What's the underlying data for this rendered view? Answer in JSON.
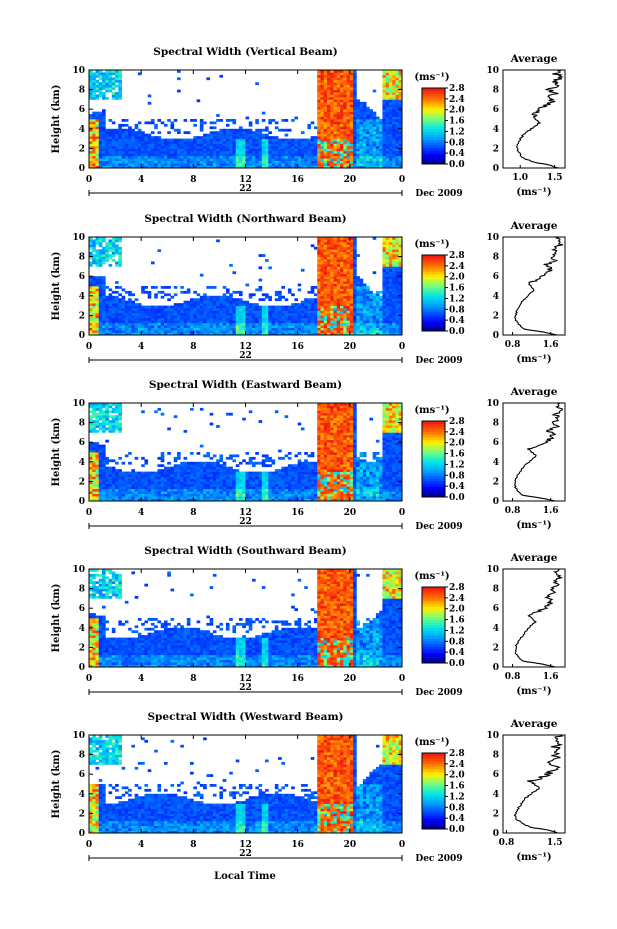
{
  "figure": {
    "xlabel_bottom": "Local Time",
    "date_label": "Dec 2009",
    "day_label": "22",
    "x_ticks": [
      "0",
      "4",
      "8",
      "12",
      "16",
      "20",
      "0"
    ],
    "y_ticks": [
      "0",
      "2",
      "4",
      "6",
      "8",
      "10"
    ],
    "ylabel": "Height (km)",
    "colorbar_unit": "(ms⁻¹)",
    "colorbar_ticks": [
      "0.0",
      "0.4",
      "0.8",
      "1.2",
      "1.6",
      "2.0",
      "2.4",
      "2.8"
    ],
    "avg_title": "Average",
    "avg_unit": "(ms⁻¹)"
  },
  "chart_data": [
    {
      "type": "heatmap",
      "title": "Spectral Width (Vertical Beam)",
      "xlabel": "Local Time",
      "ylabel": "Height (km)",
      "xlim": [
        0,
        24
      ],
      "ylim": [
        0,
        10
      ],
      "colorbar": {
        "label": "(ms⁻¹)",
        "range": [
          0,
          2.8
        ]
      }
    },
    {
      "type": "line",
      "title": "Average",
      "xlabel": "(ms⁻¹)",
      "ylabel": "Height (km)",
      "xlim": [
        0.75,
        1.65
      ],
      "ylim": [
        0,
        10
      ],
      "x_ticks": [
        "1.0",
        "1.5"
      ],
      "profile": [
        [
          1.55,
          0.0
        ],
        [
          1.42,
          0.3
        ],
        [
          1.2,
          0.6
        ],
        [
          1.05,
          1.0
        ],
        [
          1.0,
          1.4
        ],
        [
          0.97,
          1.8
        ],
        [
          0.96,
          2.2
        ],
        [
          0.98,
          2.6
        ],
        [
          1.0,
          3.0
        ],
        [
          1.05,
          3.4
        ],
        [
          1.12,
          3.8
        ],
        [
          1.2,
          4.2
        ],
        [
          1.28,
          4.6
        ],
        [
          1.22,
          5.0
        ],
        [
          1.18,
          5.3
        ],
        [
          1.25,
          5.6
        ],
        [
          1.3,
          6.0
        ],
        [
          1.38,
          6.4
        ],
        [
          1.45,
          6.8
        ],
        [
          1.38,
          7.2
        ],
        [
          1.5,
          7.6
        ],
        [
          1.42,
          8.0
        ],
        [
          1.55,
          8.4
        ],
        [
          1.48,
          8.8
        ],
        [
          1.58,
          9.2
        ],
        [
          1.52,
          9.6
        ],
        [
          1.6,
          10.0
        ]
      ]
    },
    {
      "type": "heatmap",
      "title": "Spectral Width (Northward Beam)",
      "xlabel": "Local Time",
      "ylabel": "Height (km)",
      "xlim": [
        0,
        24
      ],
      "ylim": [
        0,
        10
      ],
      "colorbar": {
        "label": "(ms⁻¹)",
        "range": [
          0,
          2.8
        ]
      }
    },
    {
      "type": "line",
      "title": "Average",
      "xlabel": "(ms⁻¹)",
      "ylabel": "Height (km)",
      "xlim": [
        0.6,
        1.9
      ],
      "ylim": [
        0,
        10
      ],
      "x_ticks": [
        "0.8",
        "1.6"
      ],
      "profile": [
        [
          1.75,
          0.0
        ],
        [
          1.45,
          0.3
        ],
        [
          1.05,
          0.6
        ],
        [
          0.95,
          1.0
        ],
        [
          0.88,
          1.4
        ],
        [
          0.86,
          1.8
        ],
        [
          0.88,
          2.2
        ],
        [
          0.9,
          2.6
        ],
        [
          0.95,
          3.0
        ],
        [
          1.0,
          3.4
        ],
        [
          1.08,
          3.8
        ],
        [
          1.15,
          4.2
        ],
        [
          1.25,
          4.6
        ],
        [
          1.18,
          5.0
        ],
        [
          1.12,
          5.3
        ],
        [
          1.3,
          5.6
        ],
        [
          1.45,
          6.0
        ],
        [
          1.55,
          6.4
        ],
        [
          1.6,
          6.8
        ],
        [
          1.5,
          7.2
        ],
        [
          1.7,
          7.6
        ],
        [
          1.62,
          8.0
        ],
        [
          1.75,
          8.4
        ],
        [
          1.68,
          8.8
        ],
        [
          1.8,
          9.2
        ],
        [
          1.72,
          9.6
        ],
        [
          1.78,
          10.0
        ]
      ]
    },
    {
      "type": "heatmap",
      "title": "Spectral Width (Eastward Beam)",
      "xlabel": "Local Time",
      "ylabel": "Height (km)",
      "xlim": [
        0,
        24
      ],
      "ylim": [
        0,
        10
      ],
      "colorbar": {
        "label": "(ms⁻¹)",
        "range": [
          0,
          2.8
        ]
      }
    },
    {
      "type": "line",
      "title": "Average",
      "xlabel": "(ms⁻¹)",
      "ylabel": "Height (km)",
      "xlim": [
        0.6,
        1.9
      ],
      "ylim": [
        0,
        10
      ],
      "x_ticks": [
        "0.8",
        "1.6"
      ],
      "profile": [
        [
          1.7,
          0.0
        ],
        [
          1.4,
          0.3
        ],
        [
          1.0,
          0.6
        ],
        [
          0.92,
          1.0
        ],
        [
          0.86,
          1.4
        ],
        [
          0.85,
          1.8
        ],
        [
          0.87,
          2.2
        ],
        [
          0.9,
          2.6
        ],
        [
          0.96,
          3.0
        ],
        [
          1.02,
          3.4
        ],
        [
          1.1,
          3.8
        ],
        [
          1.2,
          4.2
        ],
        [
          1.3,
          4.6
        ],
        [
          1.2,
          5.0
        ],
        [
          1.15,
          5.3
        ],
        [
          1.35,
          5.6
        ],
        [
          1.5,
          6.0
        ],
        [
          1.6,
          6.4
        ],
        [
          1.65,
          6.8
        ],
        [
          1.55,
          7.2
        ],
        [
          1.72,
          7.6
        ],
        [
          1.65,
          8.0
        ],
        [
          1.78,
          8.4
        ],
        [
          1.7,
          8.8
        ],
        [
          1.82,
          9.2
        ],
        [
          1.75,
          9.6
        ],
        [
          1.8,
          10.0
        ]
      ]
    },
    {
      "type": "heatmap",
      "title": "Spectral Width (Southward Beam)",
      "xlabel": "Local Time",
      "ylabel": "Height (km)",
      "xlim": [
        0,
        24
      ],
      "ylim": [
        0,
        10
      ],
      "colorbar": {
        "label": "(ms⁻¹)",
        "range": [
          0,
          2.8
        ]
      }
    },
    {
      "type": "line",
      "title": "Average",
      "xlabel": "(ms⁻¹)",
      "ylabel": "Height (km)",
      "xlim": [
        0.6,
        1.9
      ],
      "ylim": [
        0,
        10
      ],
      "x_ticks": [
        "0.8",
        "1.6"
      ],
      "profile": [
        [
          1.7,
          0.0
        ],
        [
          1.42,
          0.3
        ],
        [
          1.02,
          0.6
        ],
        [
          0.93,
          1.0
        ],
        [
          0.87,
          1.4
        ],
        [
          0.86,
          1.8
        ],
        [
          0.88,
          2.2
        ],
        [
          0.92,
          2.6
        ],
        [
          0.98,
          3.0
        ],
        [
          1.05,
          3.4
        ],
        [
          1.1,
          3.8
        ],
        [
          1.18,
          4.2
        ],
        [
          1.28,
          4.6
        ],
        [
          1.2,
          5.0
        ],
        [
          1.12,
          5.3
        ],
        [
          1.3,
          5.6
        ],
        [
          1.48,
          6.0
        ],
        [
          1.58,
          6.4
        ],
        [
          1.62,
          6.8
        ],
        [
          1.52,
          7.2
        ],
        [
          1.7,
          7.6
        ],
        [
          1.6,
          8.0
        ],
        [
          1.76,
          8.4
        ],
        [
          1.68,
          8.8
        ],
        [
          1.8,
          9.2
        ],
        [
          1.72,
          9.6
        ],
        [
          1.78,
          10.0
        ]
      ]
    },
    {
      "type": "heatmap",
      "title": "Spectral Width (Westward Beam)",
      "xlabel": "Local Time",
      "ylabel": "Height (km)",
      "xlim": [
        0,
        24
      ],
      "ylim": [
        0,
        10
      ],
      "colorbar": {
        "label": "(ms⁻¹)",
        "range": [
          0,
          2.8
        ]
      }
    },
    {
      "type": "line",
      "title": "Average",
      "xlabel": "(ms⁻¹)",
      "ylabel": "Height (km)",
      "xlim": [
        0.75,
        1.65
      ],
      "ylim": [
        0,
        10
      ],
      "x_ticks": [
        "0.8",
        "1.5"
      ],
      "profile": [
        [
          1.55,
          0.0
        ],
        [
          1.4,
          0.3
        ],
        [
          1.15,
          0.6
        ],
        [
          1.02,
          1.0
        ],
        [
          0.95,
          1.4
        ],
        [
          0.93,
          1.8
        ],
        [
          0.95,
          2.2
        ],
        [
          0.98,
          2.6
        ],
        [
          1.02,
          3.0
        ],
        [
          1.05,
          3.4
        ],
        [
          1.12,
          3.8
        ],
        [
          1.2,
          4.2
        ],
        [
          1.28,
          4.6
        ],
        [
          1.2,
          5.0
        ],
        [
          1.15,
          5.3
        ],
        [
          1.3,
          5.6
        ],
        [
          1.4,
          6.0
        ],
        [
          1.48,
          6.4
        ],
        [
          1.52,
          6.8
        ],
        [
          1.45,
          7.2
        ],
        [
          1.55,
          7.6
        ],
        [
          1.48,
          8.0
        ],
        [
          1.58,
          8.4
        ],
        [
          1.5,
          8.8
        ],
        [
          1.6,
          9.2
        ],
        [
          1.52,
          9.6
        ],
        [
          1.58,
          10.0
        ]
      ]
    }
  ]
}
